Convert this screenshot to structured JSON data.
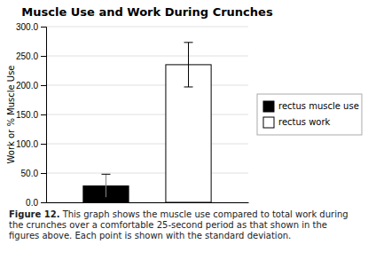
{
  "chart_data": {
    "type": "bar",
    "title": "Muscle Use and Work During Crunches",
    "ylabel": "Work or % Muscle Use",
    "categories": [
      "rectus muscle use",
      "rectus work"
    ],
    "values": [
      28.0,
      235.0
    ],
    "errors": [
      20.0,
      38.0
    ],
    "colors": [
      "#000000",
      "#ffffff"
    ],
    "ylim": [
      0,
      300
    ],
    "yticks": [
      {
        "value": 0,
        "label": "0.0"
      },
      {
        "value": 50,
        "label": "50.0"
      },
      {
        "value": 100,
        "label": "100.0"
      },
      {
        "value": 150,
        "label": "150.0"
      },
      {
        "value": 200,
        "label": "200.0"
      },
      {
        "value": 250,
        "label": "250.0"
      },
      {
        "value": 300,
        "label": "300.0"
      }
    ],
    "grid": true,
    "legend": "right",
    "tick_labels": "y",
    "caption_label": "Figure 12.",
    "caption": "This graph shows the muscle use compared to total work during the crunches over a comfortable 25-second period as that shown in the figures above. Each point is shown with the standard deviation."
  }
}
